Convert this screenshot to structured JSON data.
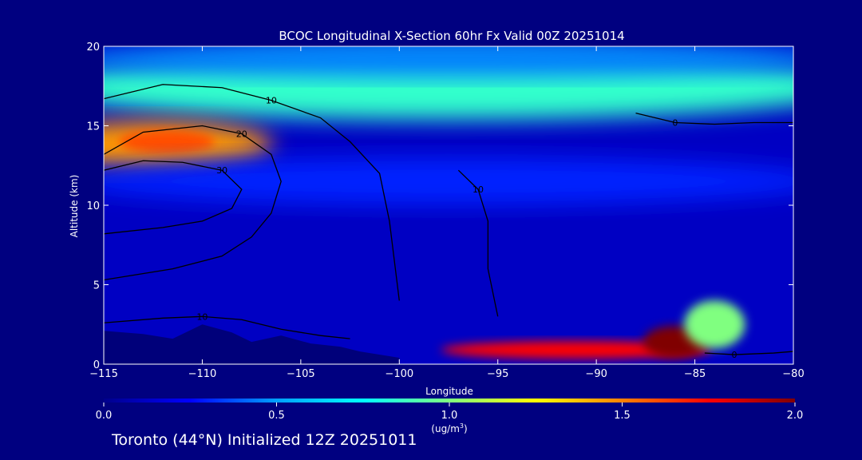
{
  "chart_data": {
    "type": "heatmap",
    "title": "BCOC Longitudinal X-Section 60hr  Fx Valid 00Z 20251014",
    "xlabel": "Longitude",
    "ylabel": "Altitude (km)",
    "xlim": [
      -115,
      -80
    ],
    "ylim": [
      0,
      20
    ],
    "x_ticks": [
      -115,
      -110,
      -105,
      -100,
      -95,
      -90,
      -85,
      -80
    ],
    "x_tick_labels": [
      "−115",
      "−110",
      "−105",
      "−100",
      "−95",
      "−90",
      "−85",
      "−80"
    ],
    "y_ticks": [
      0,
      5,
      10,
      15,
      20
    ],
    "y_tick_labels": [
      "0",
      "5",
      "10",
      "15",
      "20"
    ],
    "colorbar": {
      "min": 0.0,
      "max": 2.0,
      "ticks": [
        0.0,
        0.5,
        1.0,
        1.5,
        2.0
      ],
      "tick_labels": [
        "0.0",
        "0.5",
        "1.0",
        "1.5",
        "2.0"
      ],
      "unit_label": "(ug/m",
      "unit_superscript": "3",
      "unit_close": ")"
    },
    "colors": {
      "background": "#000080",
      "terrain": "#00007a",
      "scale": [
        "#00008b",
        "#0000ff",
        "#00a0ff",
        "#00ffff",
        "#80ff80",
        "#ffff00",
        "#ff8000",
        "#ff0000",
        "#800000"
      ]
    },
    "fields": [
      {
        "name": "upper-troposphere-band",
        "lon": -97.5,
        "alt": 17.5,
        "value": 0.85
      },
      {
        "name": "upper-high-band",
        "lon": -97.5,
        "alt": 19.2,
        "value": 0.45
      },
      {
        "name": "stratospheric-plume",
        "lon": -112.5,
        "alt": 13.8,
        "value": 1.45
      },
      {
        "name": "plume-core",
        "lon": -111.8,
        "alt": 14.0,
        "value": 1.6
      },
      {
        "name": "mid-tropospheric-layer",
        "lon": -97.5,
        "alt": 11.5,
        "value": 0.3
      },
      {
        "name": "boundary-layer-smoke",
        "lon": -91.0,
        "alt": 0.9,
        "value": 1.75
      },
      {
        "name": "smoke-maximum",
        "lon": -86.0,
        "alt": 1.4,
        "value": 2.0
      },
      {
        "name": "smoke-column-edge",
        "lon": -84.0,
        "alt": 2.5,
        "value": 1.0
      }
    ],
    "contours": [
      {
        "level": 10,
        "label": "10",
        "lon": [
          -115.0,
          -112.0,
          -109.0,
          -106.5,
          -104.0,
          -102.5,
          -101.0,
          -100.5,
          -100.0
        ],
        "alt": [
          16.7,
          17.6,
          17.4,
          16.6,
          15.5,
          14.0,
          12.0,
          9.0,
          4.0
        ]
      },
      {
        "level": 20,
        "label": "20",
        "lon": [
          -115.0,
          -113.0,
          -110.0,
          -108.0,
          -106.5,
          -106.0,
          -106.5,
          -107.5,
          -109.0,
          -111.5,
          -115.0
        ],
        "alt": [
          13.2,
          14.6,
          15.0,
          14.5,
          13.2,
          11.5,
          9.5,
          8.0,
          6.8,
          6.0,
          5.3
        ]
      },
      {
        "level": 30,
        "label": "30",
        "lon": [
          -115.0,
          -113.0,
          -111.0,
          -109.0,
          -108.0,
          -108.5,
          -110.0,
          -112.0,
          -115.0
        ],
        "alt": [
          12.2,
          12.8,
          12.7,
          12.2,
          11.0,
          9.8,
          9.0,
          8.6,
          8.2
        ]
      },
      {
        "level": 0,
        "label": "0",
        "lon": [
          -88.0,
          -86.0,
          -84.0,
          -82.0,
          -80.0
        ],
        "alt": [
          15.8,
          15.2,
          15.1,
          15.2,
          15.2
        ]
      },
      {
        "level": 10,
        "label": "10",
        "lon": [
          -97.0,
          -96.0,
          -95.5,
          -95.5,
          -95.0
        ],
        "alt": [
          12.2,
          11.0,
          9.0,
          6.0,
          3.0
        ]
      },
      {
        "level": 0,
        "label": "0",
        "lon": [
          -84.5,
          -83.0,
          -81.0,
          -80.0
        ],
        "alt": [
          0.7,
          0.6,
          0.7,
          0.8
        ]
      },
      {
        "level": 10,
        "label": "10",
        "lon": [
          -115.0,
          -112.0,
          -110.0,
          -108.0,
          -106.0,
          -104.0,
          -102.5
        ],
        "alt": [
          2.6,
          2.9,
          3.0,
          2.8,
          2.2,
          1.8,
          1.6
        ]
      }
    ],
    "terrain": {
      "lon": [
        -115.0,
        -113.0,
        -111.5,
        -110.0,
        -108.5,
        -107.5,
        -106.0,
        -104.5,
        -103.0,
        -102.0,
        -100.0
      ],
      "alt": [
        2.1,
        1.9,
        1.6,
        2.5,
        2.0,
        1.4,
        1.8,
        1.3,
        1.1,
        0.8,
        0.4
      ]
    }
  },
  "footer": {
    "text": "Toronto (44°N) Initialized 12Z 20251011"
  }
}
